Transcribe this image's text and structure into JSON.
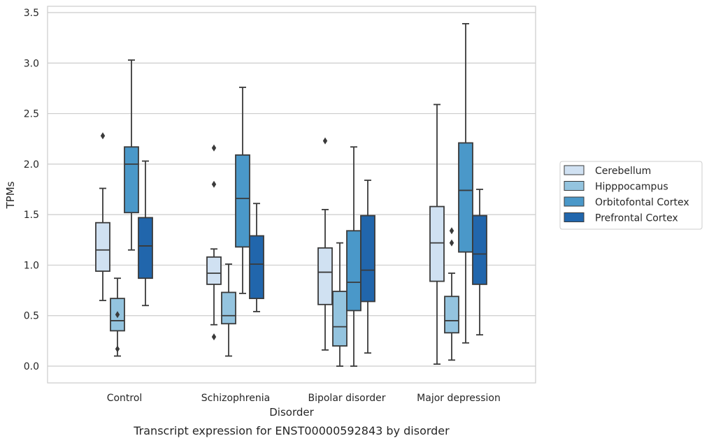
{
  "chart_data": {
    "type": "box",
    "caption": "Transcript expression for ENST00000592843 by disorder",
    "xlabel": "Disorder",
    "ylabel": "TPMs",
    "ylim": [
      -0.16,
      3.57
    ],
    "yticks": [
      0.0,
      0.5,
      1.0,
      1.5,
      2.0,
      2.5,
      3.0,
      3.5
    ],
    "ytick_labels": [
      "0.0",
      "0.5",
      "1.0",
      "1.5",
      "2.0",
      "2.5",
      "3.0",
      "3.5"
    ],
    "grid": "horizontal",
    "legend_position": "right",
    "categories": [
      "Control",
      "Schizophrenia",
      "Bipolar disorder",
      "Major depression"
    ],
    "series": [
      {
        "name": "Cerebellum",
        "color": "#d0e1f2",
        "boxes": [
          {
            "whisker_low": 0.65,
            "q1": 0.94,
            "median": 1.15,
            "q3": 1.42,
            "whisker_high": 1.76,
            "outliers": [
              2.28
            ]
          },
          {
            "whisker_low": 0.41,
            "q1": 0.81,
            "median": 0.92,
            "q3": 1.08,
            "whisker_high": 1.16,
            "outliers": [
              2.16,
              1.8,
              0.29
            ]
          },
          {
            "whisker_low": 0.16,
            "q1": 0.61,
            "median": 0.93,
            "q3": 1.17,
            "whisker_high": 1.55,
            "outliers": [
              2.23
            ]
          },
          {
            "whisker_low": 0.02,
            "q1": 0.84,
            "median": 1.22,
            "q3": 1.58,
            "whisker_high": 2.59,
            "outliers": []
          }
        ]
      },
      {
        "name": "Hipppocampus",
        "color": "#94c4df",
        "boxes": [
          {
            "whisker_low": 0.1,
            "q1": 0.35,
            "median": 0.45,
            "q3": 0.67,
            "whisker_high": 0.87,
            "outliers": [
              0.51,
              0.17
            ]
          },
          {
            "whisker_low": 0.1,
            "q1": 0.42,
            "median": 0.5,
            "q3": 0.73,
            "whisker_high": 1.01,
            "outliers": []
          },
          {
            "whisker_low": 0.0,
            "q1": 0.2,
            "median": 0.39,
            "q3": 0.74,
            "whisker_high": 1.22,
            "outliers": []
          },
          {
            "whisker_low": 0.06,
            "q1": 0.33,
            "median": 0.45,
            "q3": 0.69,
            "whisker_high": 0.92,
            "outliers": [
              1.34,
              1.22
            ]
          }
        ]
      },
      {
        "name": "Orbitofontal Cortex",
        "color": "#4a98c9",
        "boxes": [
          {
            "whisker_low": 1.15,
            "q1": 1.52,
            "median": 2.0,
            "q3": 2.17,
            "whisker_high": 3.03,
            "outliers": []
          },
          {
            "whisker_low": 0.72,
            "q1": 1.18,
            "median": 1.66,
            "q3": 2.09,
            "whisker_high": 2.76,
            "outliers": []
          },
          {
            "whisker_low": 0.0,
            "q1": 0.55,
            "median": 0.83,
            "q3": 1.34,
            "whisker_high": 2.17,
            "outliers": []
          },
          {
            "whisker_low": 0.23,
            "q1": 1.13,
            "median": 1.74,
            "q3": 2.21,
            "whisker_high": 3.39,
            "outliers": []
          }
        ]
      },
      {
        "name": "Prefrontal Cortex",
        "color": "#2166ac",
        "boxes": [
          {
            "whisker_low": 0.6,
            "q1": 0.87,
            "median": 1.19,
            "q3": 1.47,
            "whisker_high": 2.03,
            "outliers": []
          },
          {
            "whisker_low": 0.54,
            "q1": 0.67,
            "median": 1.01,
            "q3": 1.29,
            "whisker_high": 1.61,
            "outliers": []
          },
          {
            "whisker_low": 0.13,
            "q1": 0.64,
            "median": 0.95,
            "q3": 1.49,
            "whisker_high": 1.84,
            "outliers": []
          },
          {
            "whisker_low": 0.31,
            "q1": 0.81,
            "median": 1.11,
            "q3": 1.49,
            "whisker_high": 1.75,
            "outliers": []
          }
        ]
      }
    ],
    "colors": {
      "grid": "#cccccc",
      "box_edge": "#3a3a3a",
      "frame": "#cccccc"
    }
  }
}
